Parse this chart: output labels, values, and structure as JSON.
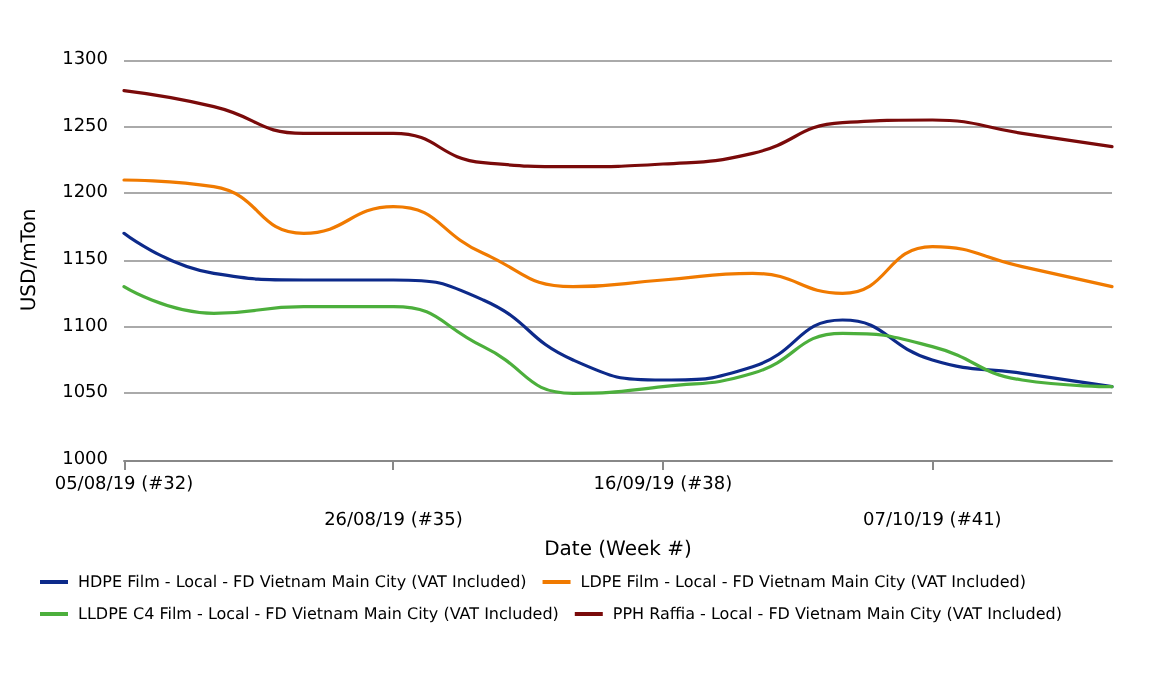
{
  "chart_data": {
    "type": "line",
    "xlabel": "Date (Week #)",
    "ylabel": "USD/mTon",
    "categories": [
      "05/08/19 (#32)",
      null,
      null,
      "26/08/19 (#35)",
      null,
      null,
      "16/09/19 (#38)",
      null,
      null,
      "07/10/19 (#41)",
      null,
      null
    ],
    "series": [
      {
        "name": "HDPE Film - Local - FD Vietnam Main City (VAT Included)",
        "color": "#0d2a8a",
        "values": [
          1170,
          1140,
          1135,
          1135,
          1120,
          1075,
          1060,
          1070,
          1105,
          1075,
          1065,
          1055
        ]
      },
      {
        "name": "LDPE Film - Local - FD Vietnam Main City (VAT Included)",
        "color": "#f07a00",
        "values": [
          1210,
          1205,
          1170,
          1190,
          1155,
          1130,
          1135,
          1140,
          1125,
          1160,
          1145,
          1130
        ]
      },
      {
        "name": "LLDPE C4 Film - Local - FD Vietnam Main City (VAT Included)",
        "color": "#4caf3c",
        "values": [
          1130,
          1110,
          1115,
          1115,
          1085,
          1050,
          1055,
          1065,
          1095,
          1085,
          1060,
          1055
        ]
      },
      {
        "name": "PPH Raffia - Local - FD Vietnam Main City (VAT Included)",
        "color": "#7a0a0a",
        "values": [
          1277,
          1265,
          1245,
          1245,
          1223,
          1220,
          1222,
          1230,
          1253,
          1255,
          1245,
          1235
        ]
      }
    ],
    "ylim": [
      1000,
      1300
    ],
    "yticks": [
      1000,
      1050,
      1100,
      1150,
      1200,
      1250,
      1300
    ],
    "grid": "y",
    "legend": "bottom",
    "marker": "none",
    "line_style": "solid"
  }
}
